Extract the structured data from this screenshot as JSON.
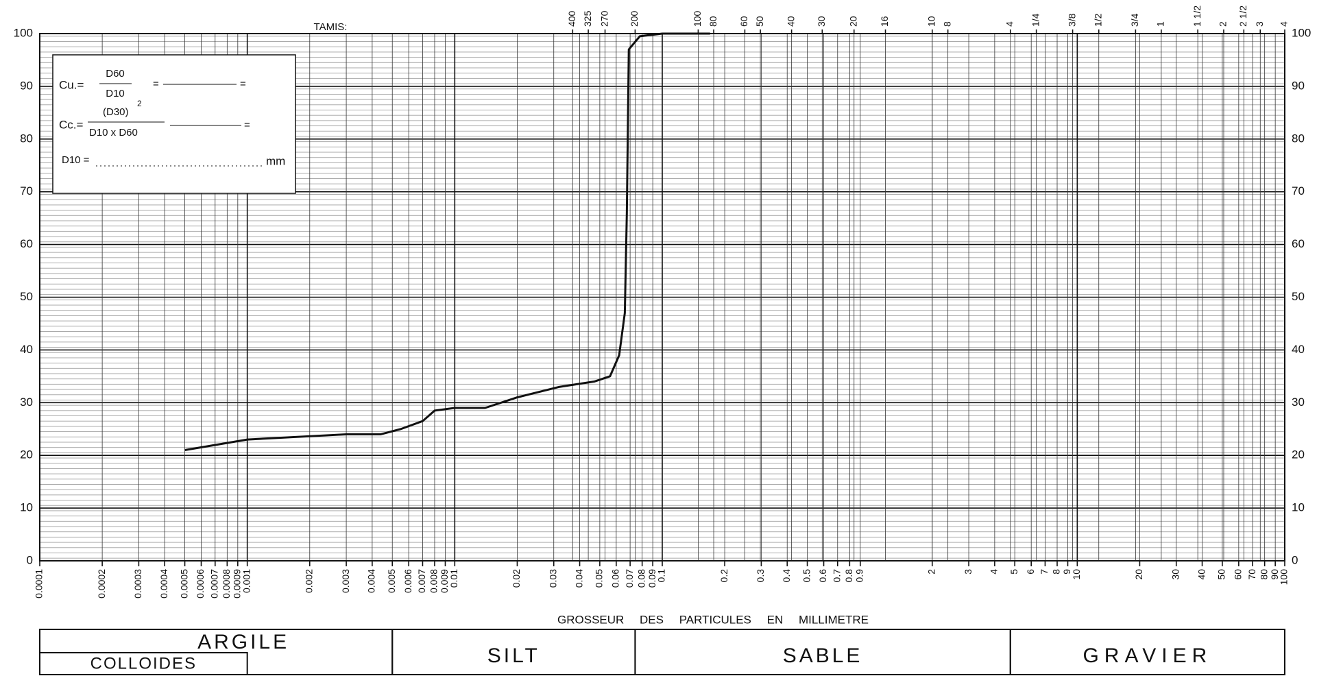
{
  "chart_data": {
    "type": "line",
    "title": "TAMIS:",
    "xlabel": "GROSSEUR DES PARTICULES EN MILLIMETRE",
    "xscale": "log",
    "xlim": [
      0.0001,
      100
    ],
    "ylim": [
      0,
      100
    ],
    "xticks": [
      0.0001,
      0.0002,
      0.0003,
      0.0004,
      0.0005,
      0.0006,
      0.0007,
      0.0008,
      0.0009,
      0.001,
      0.002,
      0.003,
      0.004,
      0.005,
      0.006,
      0.007,
      0.008,
      0.009,
      0.01,
      0.02,
      0.03,
      0.04,
      0.05,
      0.06,
      0.07,
      0.08,
      0.09,
      0.1,
      0.2,
      0.3,
      0.4,
      0.5,
      0.6,
      0.7,
      0.8,
      0.9,
      2,
      3,
      4,
      5,
      6,
      7,
      8,
      9,
      10,
      20,
      30,
      40,
      50,
      60,
      70,
      80,
      90,
      100
    ],
    "x2ticks": [
      {
        "value": 0.037,
        "label": "400"
      },
      {
        "value": 0.044,
        "label": "325"
      },
      {
        "value": 0.053,
        "label": "270"
      },
      {
        "value": 0.074,
        "label": "200"
      },
      {
        "value": 0.149,
        "label": "100"
      },
      {
        "value": 0.177,
        "label": "80"
      },
      {
        "value": 0.25,
        "label": "60"
      },
      {
        "value": 0.297,
        "label": "50"
      },
      {
        "value": 0.42,
        "label": "40"
      },
      {
        "value": 0.59,
        "label": "30"
      },
      {
        "value": 0.84,
        "label": "20"
      },
      {
        "value": 1.19,
        "label": "16"
      },
      {
        "value": 2.0,
        "label": "10"
      },
      {
        "value": 2.38,
        "label": "8"
      },
      {
        "value": 4.76,
        "label": "4"
      },
      {
        "value": 6.35,
        "label": "1/4"
      },
      {
        "value": 9.5,
        "label": "3/8"
      },
      {
        "value": 12.7,
        "label": "1/2"
      },
      {
        "value": 19.1,
        "label": "3/4"
      },
      {
        "value": 25.4,
        "label": "1"
      },
      {
        "value": 38.1,
        "label": "1 1/2"
      },
      {
        "value": 50.8,
        "label": "2"
      },
      {
        "value": 63.5,
        "label": "2 1/2"
      },
      {
        "value": 76.2,
        "label": "3"
      },
      {
        "value": 100,
        "label": "4"
      }
    ],
    "yticks": [
      0,
      10,
      20,
      30,
      40,
      50,
      60,
      70,
      80,
      90,
      100
    ],
    "grid": true,
    "color": "#111111",
    "x": [
      0.0005,
      0.001,
      0.003,
      0.0044,
      0.0055,
      0.007,
      0.008,
      0.01,
      0.014,
      0.02,
      0.032,
      0.047,
      0.056,
      0.062,
      0.066,
      0.0675,
      0.069,
      0.078,
      0.1,
      0.17
    ],
    "values": [
      21,
      23,
      24,
      24,
      25,
      26.5,
      28.5,
      29,
      29,
      31,
      33,
      34,
      35,
      39,
      47,
      66,
      97,
      99.5,
      100,
      100
    ],
    "formula": {
      "cu": "Cu.=",
      "d60": "D60",
      "d10": "D10",
      "eq": "=",
      "cc": "Cc.=",
      "d30": "(D30)",
      "sq": "2",
      "prod": "D10 x D60",
      "d10eq": "D10 =",
      "mm": "mm"
    },
    "zones": [
      {
        "label": "ARGILE",
        "from": 0.0001,
        "to": 0.005
      },
      {
        "label": "SILT",
        "from": 0.005,
        "to": 0.074
      },
      {
        "label": "SABLE",
        "from": 0.074,
        "to": 4.76
      },
      {
        "label": "GRAVIER",
        "from": 4.76,
        "to": 100
      }
    ],
    "subzone": {
      "label": "COLLOIDES",
      "from": 0.0001,
      "to": 0.001
    }
  }
}
